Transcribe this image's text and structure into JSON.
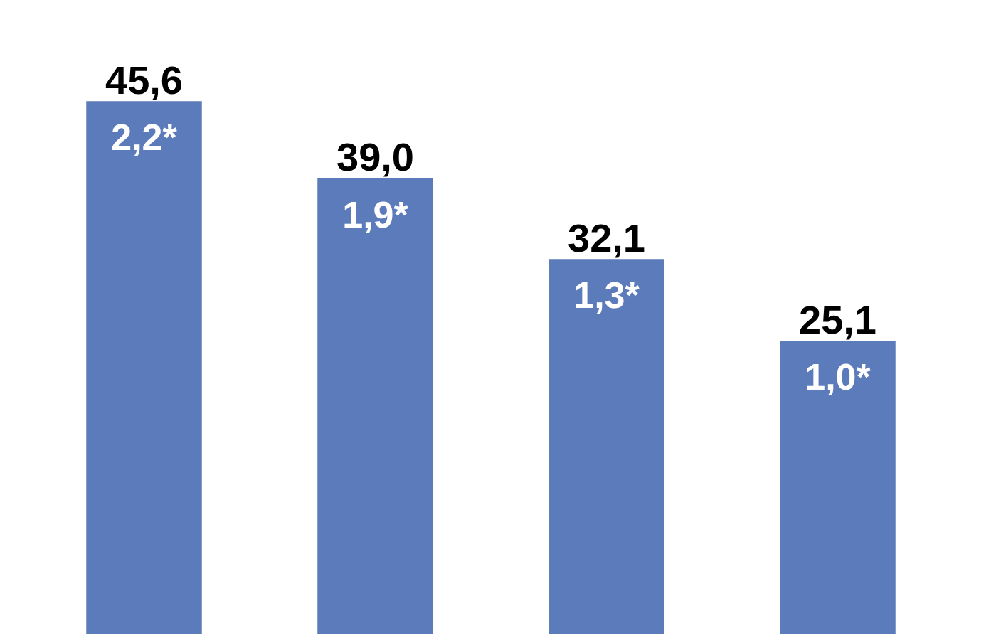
{
  "chart_data": {
    "type": "bar",
    "categories": [
      null,
      null,
      null,
      null
    ],
    "values": [
      45.6,
      39.0,
      32.1,
      25.1
    ],
    "value_labels": [
      "45,6",
      "39,0",
      "32,1",
      "25,1"
    ],
    "color": "#5b7bbb",
    "annotations": [
      "2,2*",
      "1,9*",
      "1,3*",
      "1,0*"
    ]
  }
}
